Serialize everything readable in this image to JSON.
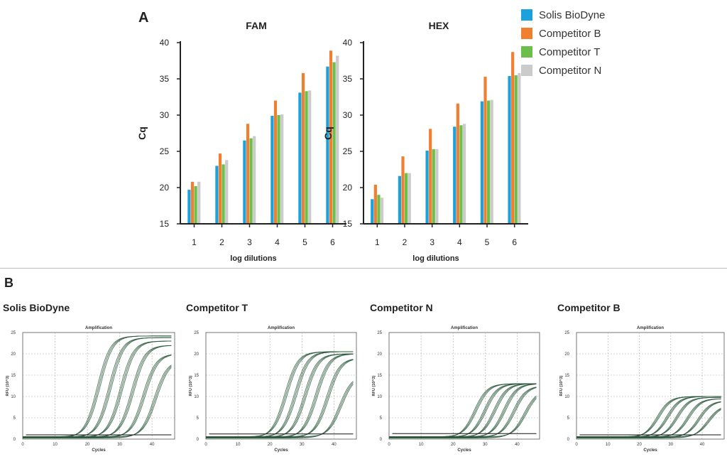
{
  "panels": {
    "a": "A",
    "b": "B"
  },
  "colors": {
    "Solis BioDyne": "#1ba1dc",
    "Competitor B": "#f07f32",
    "Competitor T": "#6cbf4a",
    "Competitor N": "#cbcbcb",
    "curve": "#2e5a3e"
  },
  "legend": [
    "Solis BioDyne",
    "Competitor B",
    "Competitor T",
    "Competitor N"
  ],
  "chart_data": [
    {
      "type": "bar",
      "title": "FAM",
      "xlabel": "log dilutions",
      "ylabel": "Cq",
      "categories": [
        "1",
        "2",
        "3",
        "4",
        "5",
        "6"
      ],
      "ylim": [
        15,
        40
      ],
      "yticks": [
        15,
        20,
        25,
        30,
        35,
        40
      ],
      "series": [
        {
          "name": "Solis BioDyne",
          "values": [
            19.7,
            23.0,
            26.5,
            29.9,
            33.1,
            36.7
          ]
        },
        {
          "name": "Competitor B",
          "values": [
            20.8,
            24.7,
            28.8,
            32.0,
            35.8,
            38.9
          ]
        },
        {
          "name": "Competitor T",
          "values": [
            20.2,
            23.2,
            26.8,
            30.0,
            33.3,
            37.3
          ]
        },
        {
          "name": "Competitor N",
          "values": [
            20.8,
            23.8,
            27.1,
            30.1,
            33.4,
            38.2
          ]
        }
      ]
    },
    {
      "type": "bar",
      "title": "HEX",
      "xlabel": "log dilutions",
      "ylabel": "Cq",
      "categories": [
        "1",
        "2",
        "3",
        "4",
        "5",
        "6"
      ],
      "ylim": [
        15,
        40
      ],
      "yticks": [
        15,
        20,
        25,
        30,
        35,
        40
      ],
      "series": [
        {
          "name": "Solis BioDyne",
          "values": [
            18.4,
            21.6,
            25.1,
            28.4,
            31.9,
            35.4
          ]
        },
        {
          "name": "Competitor B",
          "values": [
            20.4,
            24.3,
            28.1,
            31.6,
            35.3,
            38.7
          ]
        },
        {
          "name": "Competitor T",
          "values": [
            19.0,
            22.0,
            25.3,
            28.6,
            32.0,
            35.5
          ]
        },
        {
          "name": "Competitor N",
          "values": [
            18.6,
            22.0,
            25.3,
            28.8,
            32.1,
            35.8
          ]
        }
      ]
    },
    {
      "type": "line",
      "label": "Solis BioDyne",
      "title": "Amplification",
      "xlabel": "Cycles",
      "ylabel": "RFU (10^3)",
      "xlim": [
        0,
        47
      ],
      "ylim": [
        0,
        25
      ],
      "xticks": [
        0,
        10,
        20,
        30,
        40
      ],
      "yticks": [
        0,
        5,
        10,
        15,
        20,
        25
      ],
      "threshold": 1.0,
      "plateau": 24.0,
      "midpoints": [
        23.5,
        27,
        30.5,
        34,
        37.5,
        41
      ],
      "plateaus": [
        24.2,
        23.8,
        23.0,
        22.0,
        20.0,
        18.5
      ]
    },
    {
      "type": "line",
      "label": "Competitor T",
      "title": "Amplification",
      "xlabel": "Cycles",
      "ylabel": "RFU (10^3)",
      "xlim": [
        0,
        47
      ],
      "ylim": [
        0,
        25
      ],
      "xticks": [
        0,
        10,
        20,
        30,
        40
      ],
      "yticks": [
        0,
        5,
        10,
        15,
        20,
        25
      ],
      "threshold": 1.2,
      "midpoints": [
        25,
        28,
        31,
        34.5,
        38,
        42
      ],
      "plateaus": [
        20.5,
        20.5,
        20.0,
        20.0,
        19.0,
        15.0
      ]
    },
    {
      "type": "line",
      "label": "Competitor N",
      "title": "Amplification",
      "xlabel": "Cycles",
      "ylabel": "RFU (10^3)",
      "xlim": [
        0,
        47
      ],
      "ylim": [
        0,
        25
      ],
      "xticks": [
        0,
        10,
        20,
        30,
        40
      ],
      "yticks": [
        0,
        5,
        10,
        15,
        20,
        25
      ],
      "threshold": 1.3,
      "midpoints": [
        27,
        30,
        33,
        36,
        39,
        42.5
      ],
      "plateaus": [
        13.0,
        13.0,
        13.0,
        13.0,
        12.5,
        11.5
      ]
    },
    {
      "type": "line",
      "label": "Competitor B",
      "title": "Amplification",
      "xlabel": "Cycles",
      "ylabel": "RFU (10^3)",
      "xlim": [
        0,
        47
      ],
      "ylim": [
        0,
        25
      ],
      "xticks": [
        0,
        10,
        20,
        30,
        40
      ],
      "yticks": [
        0,
        5,
        10,
        15,
        20,
        25
      ],
      "threshold": 1.0,
      "midpoints": [
        26,
        29,
        32,
        35.5,
        39,
        42
      ],
      "plateaus": [
        10.0,
        10.0,
        9.8,
        9.5,
        9.0,
        8.0
      ]
    }
  ]
}
